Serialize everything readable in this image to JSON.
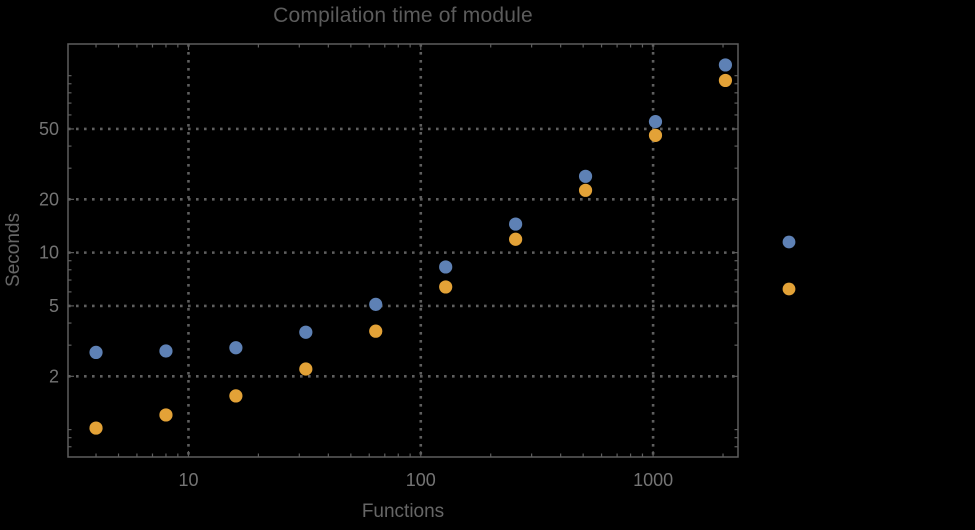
{
  "colors": {
    "background": "#000000",
    "title": "#5c5c5c",
    "axis_label": "#666666",
    "tick_label": "#747474",
    "frame": "#5e5e5e",
    "gridline": "#5f5f5f",
    "series_blue": "#5E81B5",
    "series_orange": "#E3A237"
  },
  "chart_data": {
    "type": "scatter",
    "title": "Compilation time of module",
    "xlabel": "Functions",
    "ylabel": "Seconds",
    "x_scale": "log",
    "y_scale": "log",
    "x": [
      4,
      8,
      16,
      32,
      64,
      128,
      256,
      512,
      1024,
      2048
    ],
    "series": [
      {
        "name": "series-blue",
        "color": "#5E81B5",
        "values": [
          2.73,
          2.78,
          2.9,
          3.55,
          5.1,
          8.3,
          14.5,
          27,
          55,
          115
        ]
      },
      {
        "name": "series-orange",
        "color": "#E3A237",
        "values": [
          1.02,
          1.21,
          1.55,
          2.2,
          3.6,
          6.4,
          11.9,
          22.5,
          46,
          94
        ]
      }
    ],
    "x_tick_labels": [
      10,
      100,
      1000
    ],
    "y_tick_labels": [
      2,
      5,
      10,
      20,
      50
    ],
    "xlim": [
      3.03,
      2320
    ],
    "ylim": [
      0.7,
      151
    ],
    "grid": {
      "x_values": [
        10,
        100,
        1000
      ],
      "y_values": [
        2,
        5,
        10,
        20,
        50
      ],
      "style": "dotted"
    },
    "legend": {
      "position": "right-outside",
      "entries": [
        {
          "marker_color": "#5E81B5",
          "label": ""
        },
        {
          "marker_color": "#E3A237",
          "label": ""
        }
      ]
    },
    "marker": {
      "shape": "circle",
      "radius_px": 6.6
    }
  }
}
